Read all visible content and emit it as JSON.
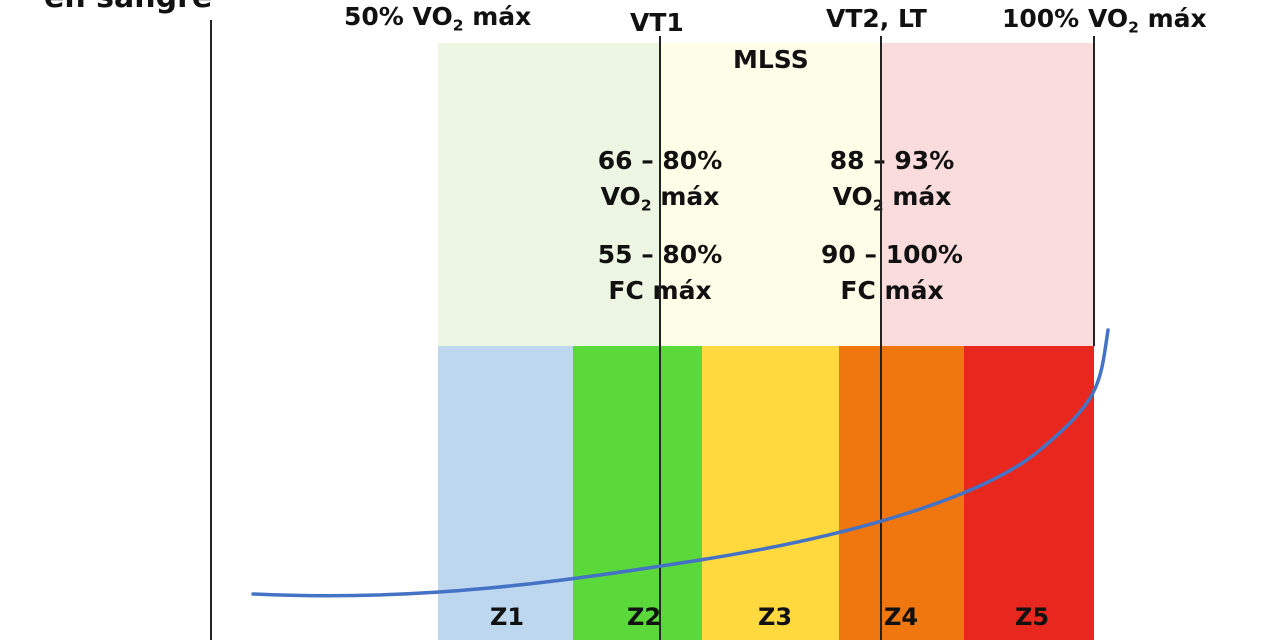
{
  "cropped_title": "en sangre",
  "top_labels": {
    "vo2_50": {
      "prefix": "50% VO",
      "sub": "2",
      "suffix": " máx"
    },
    "vt1": "VT1",
    "vt2_lt": "VT2, LT",
    "vo2_100": {
      "prefix": "100% VO",
      "sub": "2",
      "suffix": " máx"
    }
  },
  "mlss": "MLSS",
  "vt1_block": {
    "vo2_range": "66 – 80%",
    "vo2_prefix": "VO",
    "vo2_sub": "2",
    "vo2_suffix": " máx",
    "hr_range": "55 – 80%",
    "hr_text": "FC máx"
  },
  "vt2_block": {
    "vo2_range": "88 – 93%",
    "vo2_prefix": "VO",
    "vo2_sub": "2",
    "vo2_suffix": " máx",
    "hr_range": "90 – 100%",
    "hr_text": "FC máx"
  },
  "zones": [
    {
      "label": "Z1",
      "color": "#bdd7ee"
    },
    {
      "label": "Z2",
      "color": "#5cd93a"
    },
    {
      "label": "Z3",
      "color": "#ffd93d"
    },
    {
      "label": "Z4",
      "color": "#f0770f"
    },
    {
      "label": "Z5",
      "color": "#e8271f"
    }
  ],
  "bands": [
    {
      "name": "light-green",
      "color": "#edf6e3"
    },
    {
      "name": "light-yellow",
      "color": "#fefee8"
    },
    {
      "name": "light-pink",
      "color": "#fbdcdc"
    }
  ],
  "curve_color": "#4472c4"
}
